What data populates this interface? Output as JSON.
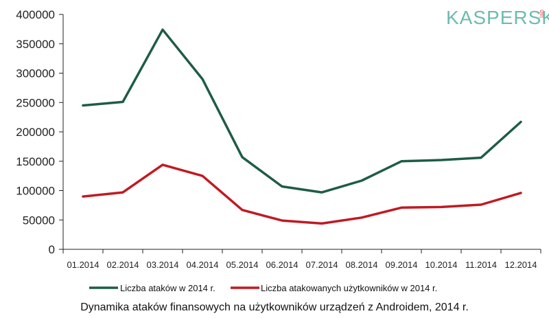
{
  "logo": {
    "name": "KASPERSKY",
    "suffix": "lab",
    "color": "#6dbbad",
    "lab_color": "#e35a5a"
  },
  "caption": "Dynamika ataków finansowych na użytkowników urządzeń z Androidem, 2014 r.",
  "chart_data": {
    "type": "line",
    "title": "",
    "xlabel": "",
    "ylabel": "",
    "categories": [
      "01.2014",
      "02.2014",
      "03.2014",
      "04.2014",
      "05.2014",
      "06.2014",
      "07.2014",
      "08.2014",
      "09.2014",
      "10.2014",
      "11.2014",
      "12.2014"
    ],
    "ylim": [
      0,
      400000
    ],
    "yticks": [
      0,
      50000,
      100000,
      150000,
      200000,
      250000,
      300000,
      350000,
      400000
    ],
    "grid": false,
    "legend": "bottom",
    "series": [
      {
        "name": "Liczba ataków w 2014 r.",
        "color": "#1e5c45",
        "values": [
          245000,
          251000,
          374000,
          290000,
          157000,
          107000,
          97000,
          117000,
          150000,
          152000,
          156000,
          217000
        ]
      },
      {
        "name": "Liczba atakowanych użytkowników w 2014 r.",
        "color": "#c01a22",
        "values": [
          90000,
          97000,
          144000,
          125000,
          67000,
          49000,
          44000,
          54000,
          71000,
          72000,
          76000,
          96000
        ]
      }
    ]
  }
}
